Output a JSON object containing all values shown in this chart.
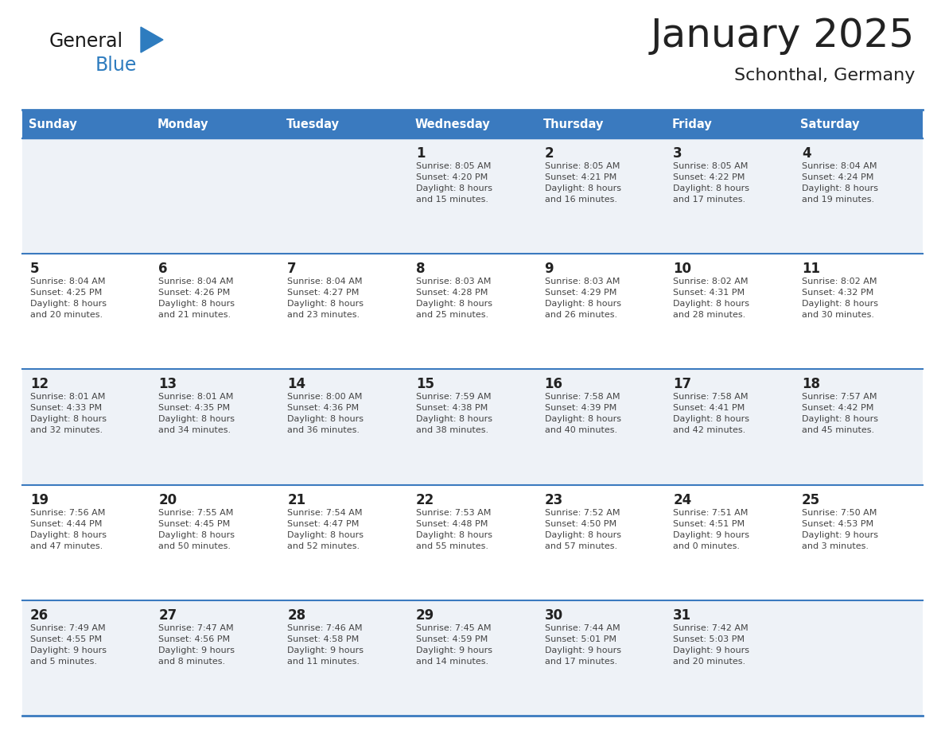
{
  "title": "January 2025",
  "subtitle": "Schonthal, Germany",
  "header_color": "#3a7abf",
  "header_text_color": "#ffffff",
  "cell_bg_odd": "#eef2f7",
  "cell_bg_even": "#ffffff",
  "border_color": "#3a7abf",
  "text_color": "#444444",
  "day_number_color": "#222222",
  "logo_general_color": "#1a1a1a",
  "logo_blue_color": "#2e7cbf",
  "days_of_week": [
    "Sunday",
    "Monday",
    "Tuesday",
    "Wednesday",
    "Thursday",
    "Friday",
    "Saturday"
  ],
  "calendar_data": [
    [
      {
        "day": null,
        "info": null
      },
      {
        "day": null,
        "info": null
      },
      {
        "day": null,
        "info": null
      },
      {
        "day": 1,
        "info": "Sunrise: 8:05 AM\nSunset: 4:20 PM\nDaylight: 8 hours\nand 15 minutes."
      },
      {
        "day": 2,
        "info": "Sunrise: 8:05 AM\nSunset: 4:21 PM\nDaylight: 8 hours\nand 16 minutes."
      },
      {
        "day": 3,
        "info": "Sunrise: 8:05 AM\nSunset: 4:22 PM\nDaylight: 8 hours\nand 17 minutes."
      },
      {
        "day": 4,
        "info": "Sunrise: 8:04 AM\nSunset: 4:24 PM\nDaylight: 8 hours\nand 19 minutes."
      }
    ],
    [
      {
        "day": 5,
        "info": "Sunrise: 8:04 AM\nSunset: 4:25 PM\nDaylight: 8 hours\nand 20 minutes."
      },
      {
        "day": 6,
        "info": "Sunrise: 8:04 AM\nSunset: 4:26 PM\nDaylight: 8 hours\nand 21 minutes."
      },
      {
        "day": 7,
        "info": "Sunrise: 8:04 AM\nSunset: 4:27 PM\nDaylight: 8 hours\nand 23 minutes."
      },
      {
        "day": 8,
        "info": "Sunrise: 8:03 AM\nSunset: 4:28 PM\nDaylight: 8 hours\nand 25 minutes."
      },
      {
        "day": 9,
        "info": "Sunrise: 8:03 AM\nSunset: 4:29 PM\nDaylight: 8 hours\nand 26 minutes."
      },
      {
        "day": 10,
        "info": "Sunrise: 8:02 AM\nSunset: 4:31 PM\nDaylight: 8 hours\nand 28 minutes."
      },
      {
        "day": 11,
        "info": "Sunrise: 8:02 AM\nSunset: 4:32 PM\nDaylight: 8 hours\nand 30 minutes."
      }
    ],
    [
      {
        "day": 12,
        "info": "Sunrise: 8:01 AM\nSunset: 4:33 PM\nDaylight: 8 hours\nand 32 minutes."
      },
      {
        "day": 13,
        "info": "Sunrise: 8:01 AM\nSunset: 4:35 PM\nDaylight: 8 hours\nand 34 minutes."
      },
      {
        "day": 14,
        "info": "Sunrise: 8:00 AM\nSunset: 4:36 PM\nDaylight: 8 hours\nand 36 minutes."
      },
      {
        "day": 15,
        "info": "Sunrise: 7:59 AM\nSunset: 4:38 PM\nDaylight: 8 hours\nand 38 minutes."
      },
      {
        "day": 16,
        "info": "Sunrise: 7:58 AM\nSunset: 4:39 PM\nDaylight: 8 hours\nand 40 minutes."
      },
      {
        "day": 17,
        "info": "Sunrise: 7:58 AM\nSunset: 4:41 PM\nDaylight: 8 hours\nand 42 minutes."
      },
      {
        "day": 18,
        "info": "Sunrise: 7:57 AM\nSunset: 4:42 PM\nDaylight: 8 hours\nand 45 minutes."
      }
    ],
    [
      {
        "day": 19,
        "info": "Sunrise: 7:56 AM\nSunset: 4:44 PM\nDaylight: 8 hours\nand 47 minutes."
      },
      {
        "day": 20,
        "info": "Sunrise: 7:55 AM\nSunset: 4:45 PM\nDaylight: 8 hours\nand 50 minutes."
      },
      {
        "day": 21,
        "info": "Sunrise: 7:54 AM\nSunset: 4:47 PM\nDaylight: 8 hours\nand 52 minutes."
      },
      {
        "day": 22,
        "info": "Sunrise: 7:53 AM\nSunset: 4:48 PM\nDaylight: 8 hours\nand 55 minutes."
      },
      {
        "day": 23,
        "info": "Sunrise: 7:52 AM\nSunset: 4:50 PM\nDaylight: 8 hours\nand 57 minutes."
      },
      {
        "day": 24,
        "info": "Sunrise: 7:51 AM\nSunset: 4:51 PM\nDaylight: 9 hours\nand 0 minutes."
      },
      {
        "day": 25,
        "info": "Sunrise: 7:50 AM\nSunset: 4:53 PM\nDaylight: 9 hours\nand 3 minutes."
      }
    ],
    [
      {
        "day": 26,
        "info": "Sunrise: 7:49 AM\nSunset: 4:55 PM\nDaylight: 9 hours\nand 5 minutes."
      },
      {
        "day": 27,
        "info": "Sunrise: 7:47 AM\nSunset: 4:56 PM\nDaylight: 9 hours\nand 8 minutes."
      },
      {
        "day": 28,
        "info": "Sunrise: 7:46 AM\nSunset: 4:58 PM\nDaylight: 9 hours\nand 11 minutes."
      },
      {
        "day": 29,
        "info": "Sunrise: 7:45 AM\nSunset: 4:59 PM\nDaylight: 9 hours\nand 14 minutes."
      },
      {
        "day": 30,
        "info": "Sunrise: 7:44 AM\nSunset: 5:01 PM\nDaylight: 9 hours\nand 17 minutes."
      },
      {
        "day": 31,
        "info": "Sunrise: 7:42 AM\nSunset: 5:03 PM\nDaylight: 9 hours\nand 20 minutes."
      },
      {
        "day": null,
        "info": null
      }
    ]
  ]
}
